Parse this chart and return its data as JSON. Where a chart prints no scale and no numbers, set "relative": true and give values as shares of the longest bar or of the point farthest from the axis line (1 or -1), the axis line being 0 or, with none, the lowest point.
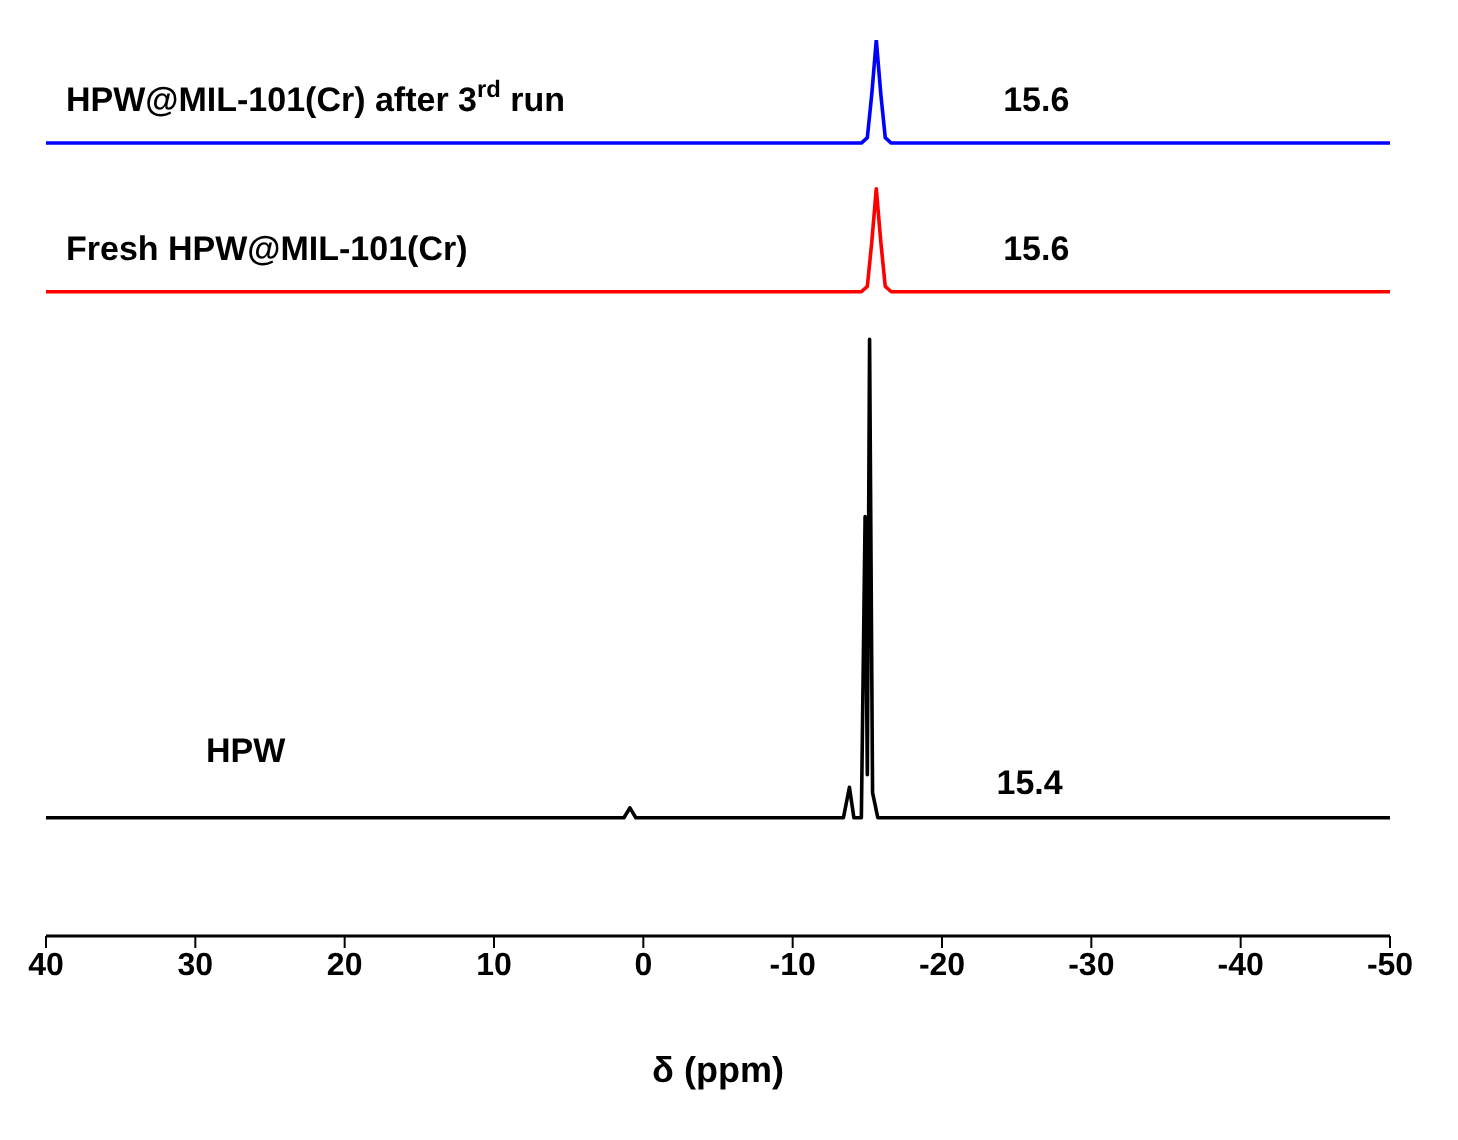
{
  "chart_data": {
    "type": "line",
    "xlabel": "δ (ppm)",
    "relative": true,
    "marker": "none",
    "xlim": [
      40,
      -50
    ],
    "xticks": [
      40,
      30,
      20,
      10,
      0,
      -10,
      -20,
      -30,
      -40,
      -50
    ],
    "series": [
      {
        "name": "HPW@MIL-101(Cr) after 3$^{rd}$ run",
        "color": "#0000ff",
        "x": [
          40,
          -14.6,
          -15.0,
          -15.3,
          -15.6,
          -15.9,
          -16.2,
          -16.6,
          -50
        ],
        "values": [
          0.885,
          0.885,
          0.891,
          0.94,
          1,
          0.94,
          0.891,
          0.885,
          0.885
        ]
      },
      {
        "name": "Fresh HPW@MIL-101(Cr)",
        "color": "#ff0000",
        "x": [
          40,
          -14.6,
          -15.0,
          -15.3,
          -15.6,
          -15.9,
          -16.2,
          -16.6,
          -50
        ],
        "values": [
          0.719,
          0.719,
          0.725,
          0.775,
          0.834,
          0.775,
          0.725,
          0.719,
          0.719
        ]
      },
      {
        "name": "HPW",
        "color": "#000000",
        "x": [
          40,
          1.3,
          0.9,
          0.5,
          -13.4,
          -13.8,
          -14.1,
          -14.6,
          -14.85,
          -15.0,
          -15.15,
          -15.35,
          -15.7,
          -50
        ],
        "values": [
          0.132,
          0.132,
          0.143,
          0.132,
          0.132,
          0.166,
          0.132,
          0.132,
          0.468,
          0.18,
          0.666,
          0.16,
          0.132,
          0.132
        ]
      }
    ],
    "annotations": [
      "15.6",
      "15.6",
      "15.4"
    ]
  }
}
